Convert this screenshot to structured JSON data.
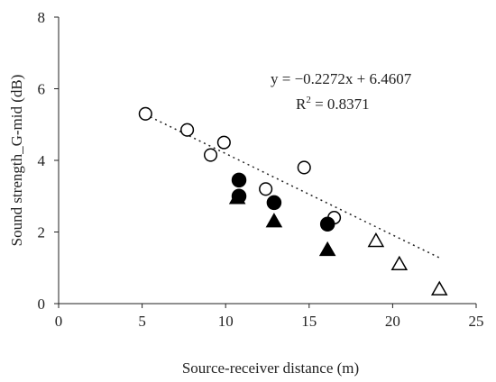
{
  "chart_data": {
    "type": "scatter",
    "xlabel": "Source-receiver distance (m)",
    "ylabel": "Sound strength_G-mid (dB)",
    "xlim": [
      0,
      25
    ],
    "ylim": [
      0,
      8
    ],
    "xticks": [
      0,
      5,
      10,
      15,
      20,
      25
    ],
    "yticks": [
      0,
      2,
      4,
      6,
      8
    ],
    "grid": false,
    "legend": "none",
    "series": [
      {
        "marker": "open-circle",
        "points": [
          [
            5.2,
            5.3
          ],
          [
            7.7,
            4.85
          ],
          [
            9.1,
            4.15
          ],
          [
            9.9,
            4.5
          ],
          [
            12.4,
            3.2
          ],
          [
            14.7,
            3.8
          ],
          [
            16.5,
            2.4
          ]
        ]
      },
      {
        "marker": "filled-circle",
        "points": [
          [
            10.8,
            3.45
          ],
          [
            10.8,
            3.0
          ],
          [
            12.9,
            2.82
          ],
          [
            16.1,
            2.22
          ]
        ]
      },
      {
        "marker": "filled-triangle",
        "points": [
          [
            10.7,
            2.95
          ],
          [
            12.9,
            2.3
          ],
          [
            16.1,
            1.5
          ]
        ]
      },
      {
        "marker": "open-triangle",
        "points": [
          [
            19.0,
            1.75
          ],
          [
            20.4,
            1.1
          ],
          [
            22.8,
            0.4
          ]
        ]
      }
    ],
    "trendline": {
      "slope": -0.2272,
      "intercept": 6.4607,
      "x_range": [
        5.2,
        22.8
      ],
      "style": "dotted",
      "equation_label": "y = −0.2272x + 6.4607",
      "r2_label_prefix": "R",
      "r2_label_sup": "2",
      "r2_label_value": " = 0.8371"
    }
  }
}
